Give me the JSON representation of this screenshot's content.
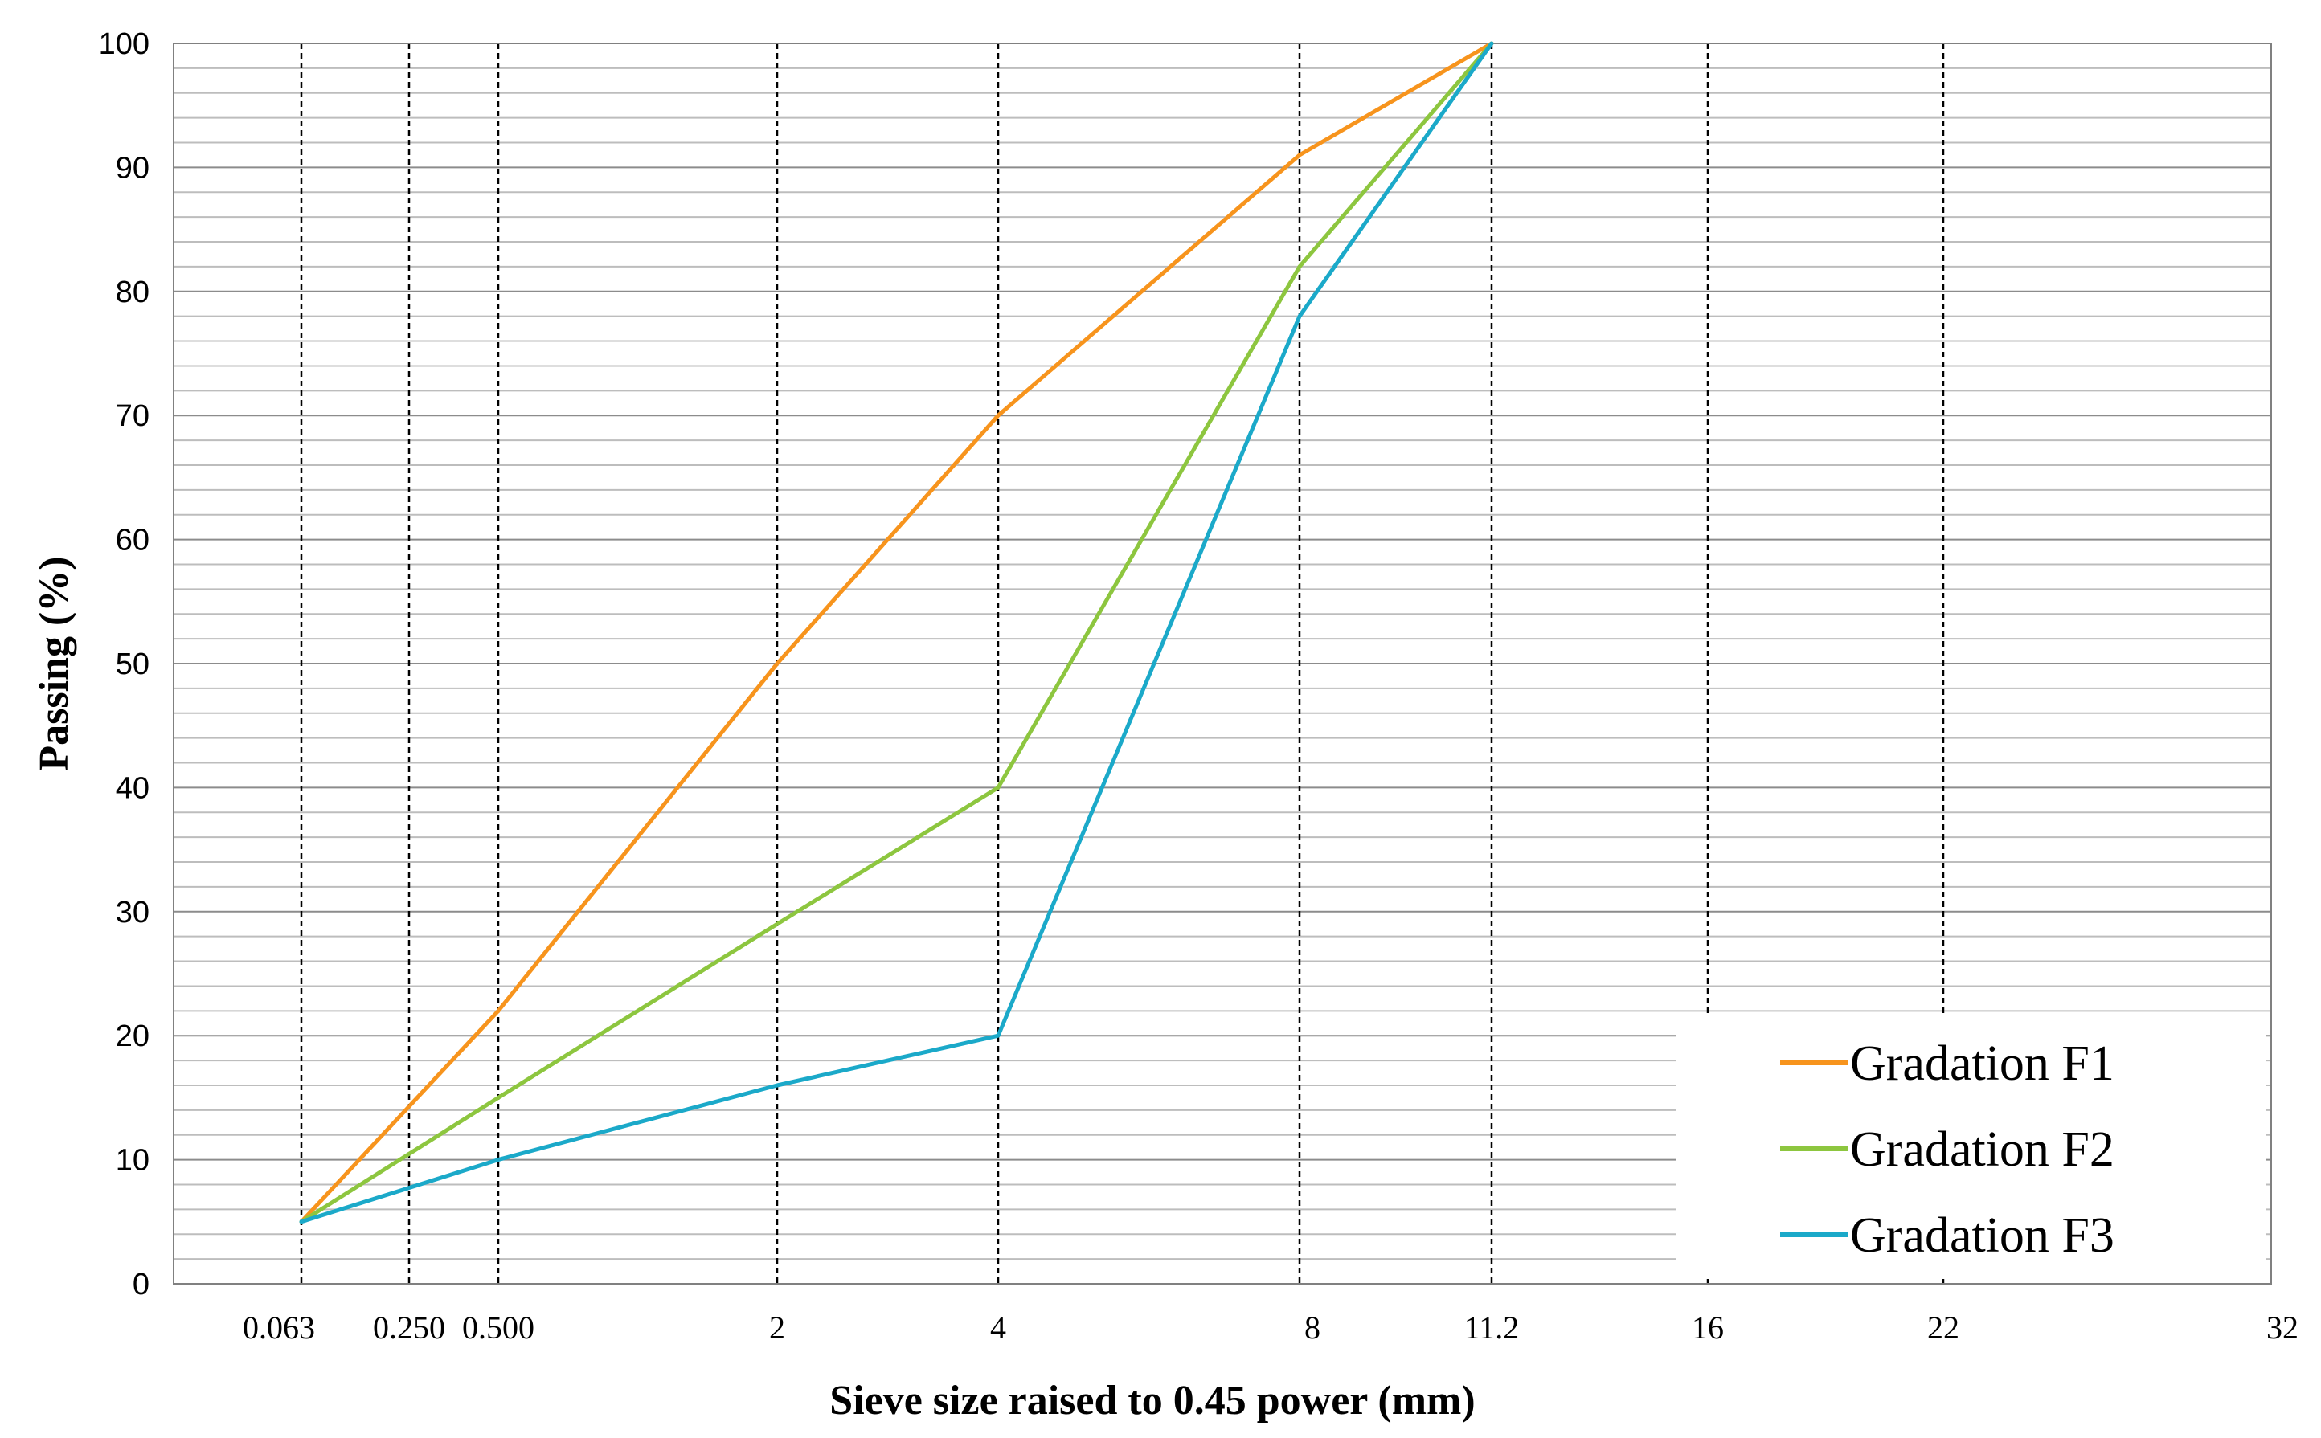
{
  "chart_data": {
    "type": "line",
    "xlabel": "Sieve size raised to 0.45 power (mm)",
    "ylabel": "Passing (%)",
    "x_scale": "power 0.45",
    "x_ticks": [
      "0.063",
      "0.250",
      "0.500",
      "2",
      "4",
      "8",
      "11.2",
      "16",
      "22",
      "32"
    ],
    "x_tick_values": [
      0.063,
      0.25,
      0.5,
      2,
      4,
      8,
      11.2,
      16,
      22,
      32
    ],
    "ylim": [
      0,
      100
    ],
    "y_ticks": [
      0,
      10,
      20,
      30,
      40,
      50,
      60,
      70,
      80,
      90,
      100
    ],
    "grid": "horizontal minor every 2%, dashed vertical lines at sieve sizes",
    "legend_position": "bottom-right",
    "series": [
      {
        "name": "Gradation F1",
        "color": "#F7941D",
        "points": [
          {
            "x": 0.063,
            "y": 5
          },
          {
            "x": 0.5,
            "y": 22
          },
          {
            "x": 2,
            "y": 50
          },
          {
            "x": 4,
            "y": 70
          },
          {
            "x": 8,
            "y": 91
          },
          {
            "x": 11.2,
            "y": 100
          }
        ]
      },
      {
        "name": "Gradation F2",
        "color": "#8DC63F",
        "points": [
          {
            "x": 0.063,
            "y": 5
          },
          {
            "x": 0.5,
            "y": 15
          },
          {
            "x": 2,
            "y": 29
          },
          {
            "x": 4,
            "y": 40
          },
          {
            "x": 8,
            "y": 82
          },
          {
            "x": 11.2,
            "y": 100
          }
        ]
      },
      {
        "name": "Gradation F3",
        "color": "#1BA9C9",
        "points": [
          {
            "x": 0.063,
            "y": 5
          },
          {
            "x": 0.5,
            "y": 10
          },
          {
            "x": 2,
            "y": 16
          },
          {
            "x": 4,
            "y": 20
          },
          {
            "x": 8,
            "y": 78
          },
          {
            "x": 11.2,
            "y": 100
          }
        ]
      }
    ]
  }
}
